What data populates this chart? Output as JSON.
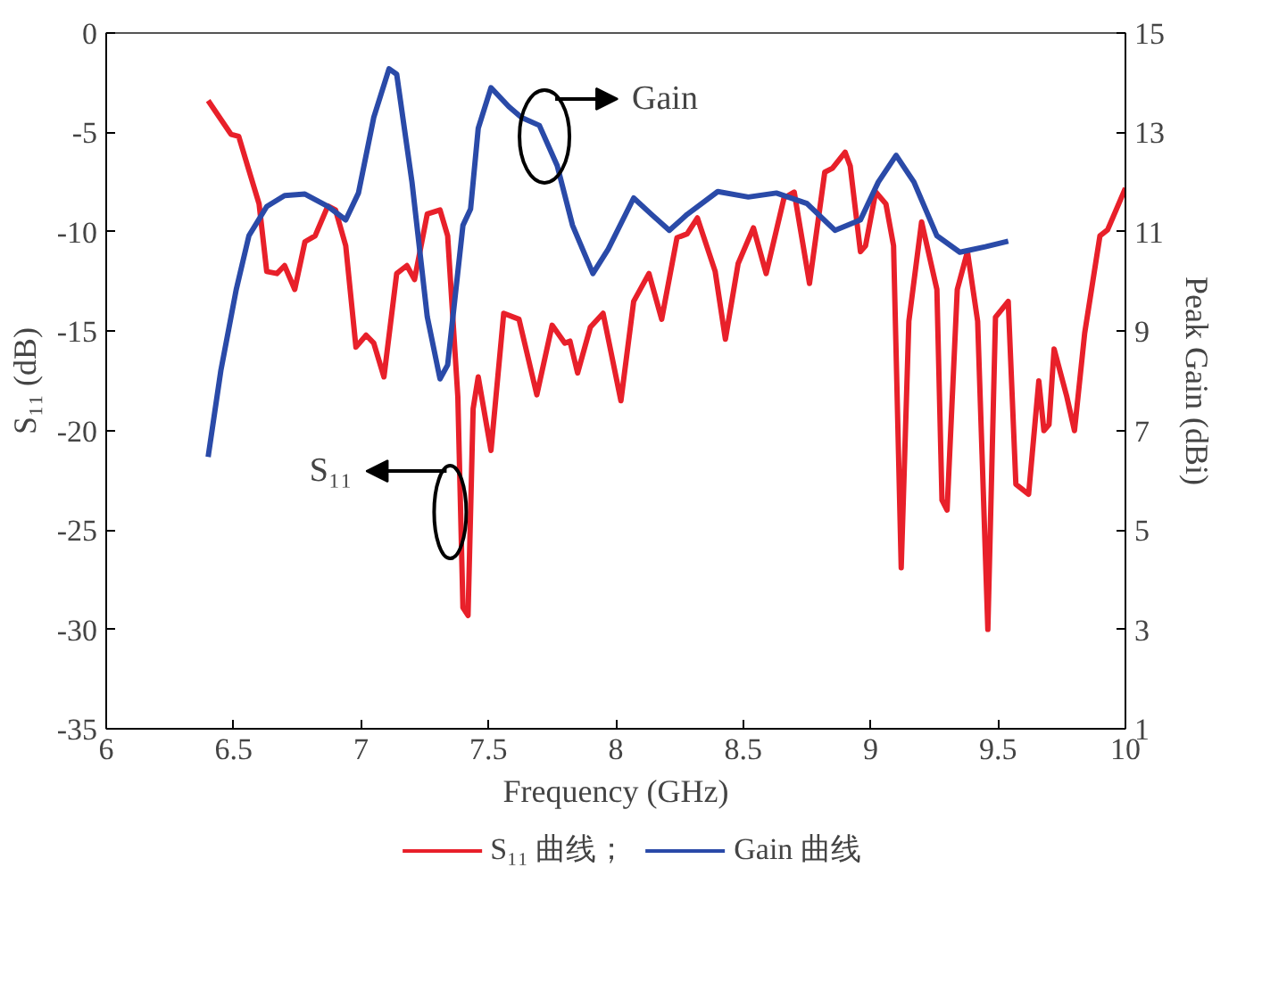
{
  "chart_data": {
    "type": "line",
    "xlabel": "Frequency (GHz)",
    "ylabel": "S₁₁ (dB)",
    "y2label": "Peak Gain (dBi)",
    "xlim": [
      6,
      10
    ],
    "xticks": [
      6,
      6.5,
      7,
      7.5,
      8,
      8.5,
      9,
      9.5,
      10
    ],
    "ylim": [
      -35,
      0
    ],
    "yticks": [
      -35,
      -30,
      -25,
      -20,
      -15,
      -10,
      -5,
      0
    ],
    "y2lim": [
      1,
      15
    ],
    "y2ticks": [
      1,
      3,
      5,
      7,
      9,
      11,
      13,
      15
    ],
    "grid": false,
    "legend": "bottom",
    "line_style": "solid",
    "marker": "none",
    "series": [
      {
        "name": "S₁₁ 曲线；",
        "color": "#e8202a",
        "axis": "y",
        "x": [
          6.4,
          6.49,
          6.52,
          6.56,
          6.6,
          6.63,
          6.67,
          6.7,
          6.74,
          6.78,
          6.82,
          6.87,
          6.9,
          6.94,
          6.98,
          7.02,
          7.05,
          7.09,
          7.14,
          7.18,
          7.21,
          7.26,
          7.31,
          7.34,
          7.38,
          7.4,
          7.42,
          7.44,
          7.46,
          7.51,
          7.56,
          7.62,
          7.69,
          7.75,
          7.8,
          7.82,
          7.85,
          7.9,
          7.95,
          8.02,
          8.07,
          8.13,
          8.18,
          8.24,
          8.28,
          8.32,
          8.39,
          8.43,
          8.48,
          8.54,
          8.59,
          8.66,
          8.7,
          8.76,
          8.82,
          8.85,
          8.9,
          8.92,
          8.96,
          8.98,
          9.02,
          9.06,
          9.09,
          9.12,
          9.15,
          9.2,
          9.26,
          9.28,
          9.3,
          9.34,
          9.38,
          9.42,
          9.46,
          9.49,
          9.54,
          9.57,
          9.62,
          9.66,
          9.68,
          9.7,
          9.72,
          9.77,
          9.8,
          9.84,
          9.9,
          9.93,
          10.0
        ],
        "values": [
          -3.4,
          -5.1,
          -5.2,
          -6.9,
          -8.6,
          -12.0,
          -12.1,
          -11.7,
          -12.9,
          -10.5,
          -10.2,
          -8.7,
          -8.9,
          -10.7,
          -15.8,
          -15.2,
          -15.6,
          -17.3,
          -12.1,
          -11.7,
          -12.4,
          -9.1,
          -8.9,
          -10.2,
          -18.3,
          -28.9,
          -29.3,
          -18.9,
          -17.3,
          -21.0,
          -14.1,
          -14.4,
          -18.2,
          -14.7,
          -15.6,
          -15.5,
          -17.1,
          -14.8,
          -14.1,
          -18.5,
          -13.5,
          -12.1,
          -14.4,
          -10.3,
          -10.1,
          -9.3,
          -12.0,
          -15.4,
          -11.6,
          -9.8,
          -12.1,
          -8.3,
          -8.0,
          -12.6,
          -7.0,
          -6.8,
          -6.0,
          -6.7,
          -11.0,
          -10.7,
          -8.0,
          -8.6,
          -10.7,
          -26.9,
          -14.5,
          -9.5,
          -12.9,
          -23.5,
          -24.0,
          -12.9,
          -11.0,
          -14.5,
          -30.0,
          -14.3,
          -13.5,
          -22.7,
          -23.2,
          -17.5,
          -20.0,
          -19.7,
          -15.9,
          -18.3,
          -20.0,
          -15.1,
          -10.2,
          -9.9,
          -7.8
        ]
      },
      {
        "name": "Gain 曲线",
        "color": "#2a4aa8",
        "axis": "y2",
        "x": [
          6.4,
          6.45,
          6.51,
          6.56,
          6.63,
          6.7,
          6.78,
          6.87,
          6.94,
          6.99,
          7.05,
          7.11,
          7.14,
          7.2,
          7.26,
          7.31,
          7.34,
          7.4,
          7.43,
          7.46,
          7.51,
          7.58,
          7.63,
          7.7,
          7.77,
          7.83,
          7.91,
          7.97,
          8.07,
          8.14,
          8.21,
          8.28,
          8.4,
          8.52,
          8.63,
          8.75,
          8.86,
          8.96,
          9.03,
          9.1,
          9.17,
          9.26,
          9.35,
          9.45,
          9.54
        ],
        "values": [
          6.47,
          8.21,
          9.83,
          10.92,
          11.51,
          11.73,
          11.76,
          11.51,
          11.24,
          11.78,
          13.3,
          14.28,
          14.17,
          12.0,
          9.29,
          8.04,
          8.32,
          11.13,
          11.46,
          13.08,
          13.9,
          13.52,
          13.3,
          13.14,
          12.33,
          11.13,
          10.16,
          10.65,
          11.68,
          11.35,
          11.03,
          11.35,
          11.81,
          11.7,
          11.78,
          11.57,
          11.03,
          11.24,
          12.0,
          12.54,
          12.0,
          10.92,
          10.59,
          10.7,
          10.81
        ]
      }
    ],
    "annotations": [
      {
        "text": "S₁₁",
        "x": 7.35,
        "y": -24.1
      },
      {
        "text": "Gain",
        "x": 7.72,
        "y": -5.2
      }
    ]
  }
}
